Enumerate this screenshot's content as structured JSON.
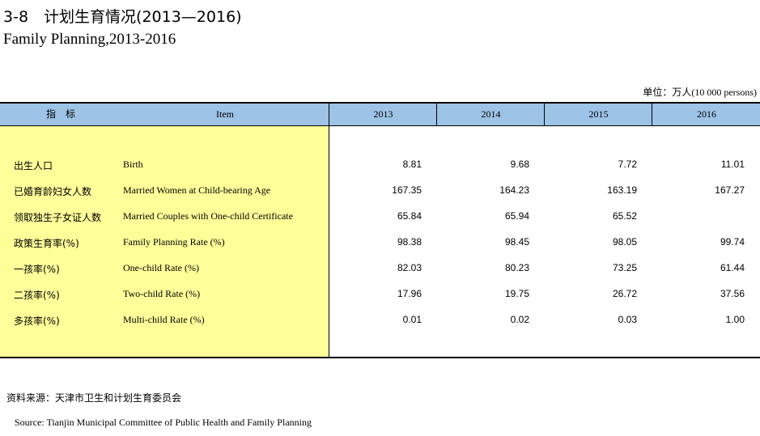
{
  "title": {
    "cn": "3-8　计划生育情况(2013—2016)",
    "en": "Family Planning,2013-2016"
  },
  "unit": {
    "cn": "单位：万人",
    "en": "(10 000 persons)"
  },
  "header": {
    "indicator": "指　标",
    "item": "Item",
    "years": [
      "2013",
      "2014",
      "2015",
      "2016"
    ]
  },
  "rows": [
    {
      "cn": "出生人口",
      "en": "Birth",
      "values": [
        "8.81",
        "9.68",
        "7.72",
        "11.01"
      ]
    },
    {
      "cn": "已婚育龄妇女人数",
      "en": "Married Women at Child-bearing Age",
      "values": [
        "167.35",
        "164.23",
        "163.19",
        "167.27"
      ]
    },
    {
      "cn": "领取独生子女证人数",
      "en": "Married Couples with One-child Certificate",
      "values": [
        "65.84",
        "65.94",
        "65.52",
        ""
      ]
    },
    {
      "cn": "政策生育率(%)",
      "en": "Family Planning Rate (%)",
      "values": [
        "98.38",
        "98.45",
        "98.05",
        "99.74"
      ]
    },
    {
      "cn": "一孩率(%)",
      "en": "One-child Rate (%)",
      "values": [
        "82.03",
        "80.23",
        "73.25",
        "61.44"
      ]
    },
    {
      "cn": "二孩率(%)",
      "en": "Two-child Rate (%)",
      "values": [
        "17.96",
        "19.75",
        "26.72",
        "37.56"
      ]
    },
    {
      "cn": "多孩率(%)",
      "en": "Multi-child Rate (%)",
      "values": [
        "0.01",
        "0.02",
        "0.03",
        "1.00"
      ]
    }
  ],
  "source": {
    "cn": "资料来源：天津市卫生和计划生育委员会",
    "en": "Source: Tianjin Municipal Committee of Public Health and Family Planning"
  },
  "colors": {
    "header_bg": "#9dc3e6",
    "item_bg": "#ffff99"
  }
}
